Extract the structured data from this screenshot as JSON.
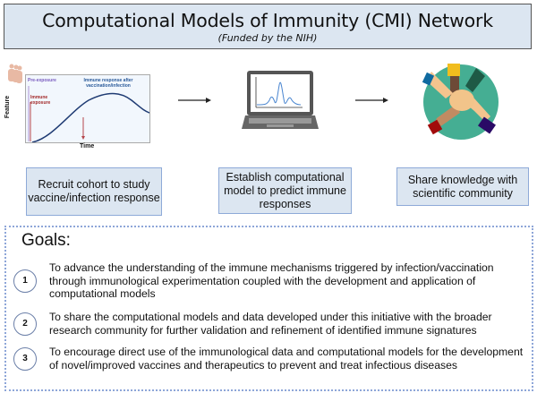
{
  "header": {
    "title": "Computational Models of Immunity (CMI) Network",
    "subtitle": "(Funded by the NIH)"
  },
  "chart_panel": {
    "pre_exposure": "Pre-exposure",
    "immune_exposure": "Immune exposure",
    "response_label": "Immune response after vaccination/infection",
    "y_label": "Feature",
    "x_label": "Time"
  },
  "steps": [
    {
      "label": "Recruit cohort to study vaccine/infection response"
    },
    {
      "label": "Establish computational model to predict immune responses"
    },
    {
      "label": "Share knowledge with scientific community"
    }
  ],
  "goals": {
    "heading": "Goals:",
    "items": [
      {
        "num": "1",
        "text": "To advance the understanding of the immune mechanisms triggered by infection/vaccination through immunological experimentation coupled with the development and application of computational models"
      },
      {
        "num": "2",
        "text": "To share the computational models and data developed under this initiative with the broader research community for further validation and refinement of identified immune signatures"
      },
      {
        "num": "3",
        "text": "To encourage direct use of the immunological data and computational models for the development of novel/improved vaccines and therapeutics to prevent and treat infectious diseases"
      }
    ]
  },
  "colors": {
    "header_bg": "#dce6f1",
    "box_border": "#8eaad8",
    "hands_circle": "#45ae93",
    "curve": "#1f3b73"
  }
}
